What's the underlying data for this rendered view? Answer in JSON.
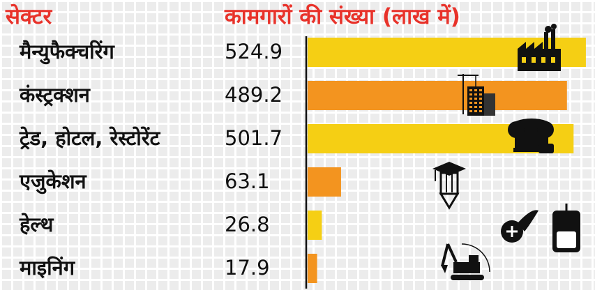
{
  "headers": {
    "sector": "सेक्टर",
    "count": "कामगारों की संख्या (लाख में)"
  },
  "colors": {
    "header": "#e8322a",
    "yellow": "#f5cf14",
    "orange": "#f3941f",
    "axis": "#111111"
  },
  "chart_data": {
    "type": "bar",
    "orientation": "horizontal",
    "categories": [
      "मैन्युफैक्चरिंग",
      "कंस्ट्रक्शन",
      "ट्रेड, होटल, रेस्टोरेंट",
      "एजुकेशन",
      "हेल्थ",
      "माइनिंग"
    ],
    "values": [
      524.9,
      489.2,
      501.7,
      63.1,
      26.8,
      17.9
    ],
    "value_labels": [
      "524.9",
      "489.2",
      "501.7",
      "63.1",
      "26.8",
      "17.9"
    ],
    "bar_colors": [
      "#f5cf14",
      "#f3941f",
      "#f5cf14",
      "#f3941f",
      "#f5cf14",
      "#f3941f"
    ],
    "icons": [
      "factory-icon",
      "building-crane-icon",
      "chef-hat-icon",
      "graduation-pencil-icon",
      "medical-hand-iv-icon",
      "excavator-icon"
    ],
    "title": "",
    "xlabel": "",
    "ylabel": ""
  }
}
